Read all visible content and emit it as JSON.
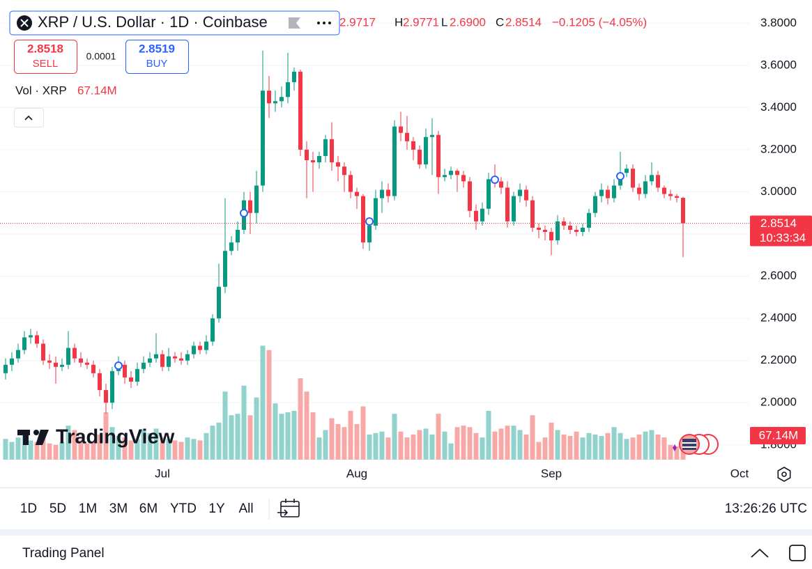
{
  "symbol_title": "XRP / U.S. Dollar · 1D · Coinbase",
  "header": {
    "open": "2.9717",
    "high_label": "H",
    "high": "2.9771",
    "low_label": "L",
    "low": "2.6900",
    "close_label": "C",
    "close": "2.8514",
    "change": "−0.1205 (−4.05%)"
  },
  "sell": {
    "price": "2.8518",
    "label": "SELL"
  },
  "spread": "0.0001",
  "buy": {
    "price": "2.8519",
    "label": "BUY"
  },
  "volume_legend": {
    "label": "Vol · XRP",
    "value": "67.14M"
  },
  "logo": "TradingView",
  "countdown": "10:33:34",
  "timeframes": [
    "1D",
    "5D",
    "1M",
    "3M",
    "6M",
    "YTD",
    "1Y",
    "All"
  ],
  "clock": "13:26:26 UTC",
  "panel_title": "Trading Panel",
  "chart_data": {
    "type": "candlestick",
    "x": [
      "Jun 6",
      "Jun 7",
      "Jun 8",
      "Jun 9",
      "Jun 10",
      "Jun 11",
      "Jun 12",
      "Jun 13",
      "Jun 14",
      "Jun 15",
      "Jun 16",
      "Jun 17",
      "Jun 18",
      "Jun 19",
      "Jun 20",
      "Jun 21",
      "Jun 22",
      "Jun 23",
      "Jun 24",
      "Jun 25",
      "Jun 26",
      "Jun 27",
      "Jun 28",
      "Jun 29",
      "Jun 30",
      "Jul 1",
      "Jul 2",
      "Jul 3",
      "Jul 4",
      "Jul 5",
      "Jul 6",
      "Jul 7",
      "Jul 8",
      "Jul 9",
      "Jul 10",
      "Jul 11",
      "Jul 12",
      "Jul 13",
      "Jul 14",
      "Jul 15",
      "Jul 16",
      "Jul 17",
      "Jul 18",
      "Jul 19",
      "Jul 20",
      "Jul 21",
      "Jul 22",
      "Jul 23",
      "Jul 24",
      "Jul 25",
      "Jul 26",
      "Jul 27",
      "Jul 28",
      "Jul 29",
      "Jul 30",
      "Jul 31",
      "Aug 1",
      "Aug 2",
      "Aug 3",
      "Aug 4",
      "Aug 5",
      "Aug 6",
      "Aug 7",
      "Aug 8",
      "Aug 9",
      "Aug 10",
      "Aug 11",
      "Aug 12",
      "Aug 13",
      "Aug 14",
      "Aug 15",
      "Aug 16",
      "Aug 17",
      "Aug 18",
      "Aug 19",
      "Aug 20",
      "Aug 21",
      "Aug 22",
      "Aug 23",
      "Aug 24",
      "Aug 25",
      "Aug 26",
      "Aug 27",
      "Aug 28",
      "Aug 29",
      "Aug 30",
      "Aug 31",
      "Sep 1",
      "Sep 2",
      "Sep 3",
      "Sep 4",
      "Sep 5",
      "Sep 6",
      "Sep 7",
      "Sep 8",
      "Sep 9",
      "Sep 10",
      "Sep 11",
      "Sep 12",
      "Sep 13",
      "Sep 14",
      "Sep 15",
      "Sep 16",
      "Sep 17",
      "Sep 18",
      "Sep 19",
      "Sep 20",
      "Sep 21",
      "Sep 22"
    ],
    "open": [
      2.14,
      2.18,
      2.21,
      2.25,
      2.31,
      2.32,
      2.28,
      2.2,
      2.19,
      2.17,
      2.18,
      2.26,
      2.21,
      2.19,
      2.18,
      2.14,
      2.06,
      2.0,
      2.15,
      2.18,
      2.12,
      2.1,
      2.16,
      2.19,
      2.21,
      2.23,
      2.17,
      2.22,
      2.21,
      2.2,
      2.23,
      2.27,
      2.25,
      2.29,
      2.4,
      2.55,
      2.72,
      2.76,
      2.82,
      2.96,
      2.9,
      3.03,
      3.48,
      3.42,
      3.43,
      3.45,
      3.52,
      3.57,
      3.2,
      3.15,
      3.14,
      3.17,
      3.25,
      3.14,
      3.12,
      3.08,
      3.0,
      2.98,
      2.76,
      2.84,
      2.97,
      3.01,
      2.98,
      3.31,
      3.28,
      3.24,
      3.2,
      3.13,
      3.26,
      3.27,
      3.07,
      3.08,
      3.1,
      3.08,
      3.05,
      2.91,
      2.86,
      2.92,
      3.06,
      3.05,
      3.02,
      2.86,
      2.98,
      3.01,
      2.96,
      2.83,
      2.82,
      2.81,
      2.77,
      2.86,
      2.84,
      2.82,
      2.81,
      2.83,
      2.9,
      2.98,
      3.01,
      2.97,
      3.03,
      3.09,
      3.11,
      3.02,
      2.99,
      3.05,
      3.08,
      3.02,
      2.99,
      2.98,
      2.9717
    ],
    "high": [
      2.21,
      2.24,
      2.28,
      2.34,
      2.35,
      2.34,
      2.3,
      2.23,
      2.22,
      2.21,
      2.34,
      2.28,
      2.24,
      2.21,
      2.2,
      2.16,
      2.09,
      2.17,
      2.22,
      2.2,
      2.15,
      2.19,
      2.22,
      2.24,
      2.33,
      2.25,
      2.26,
      2.24,
      2.24,
      2.25,
      2.29,
      2.29,
      2.32,
      2.42,
      2.66,
      2.97,
      2.79,
      2.86,
      3.0,
      3.0,
      3.1,
      3.67,
      3.55,
      3.48,
      3.5,
      3.66,
      3.59,
      3.58,
      3.24,
      3.19,
      3.19,
      3.27,
      3.33,
      3.17,
      3.14,
      3.1,
      3.02,
      2.99,
      2.87,
      3.01,
      3.05,
      3.04,
      3.34,
      3.38,
      3.36,
      3.26,
      3.22,
      3.3,
      3.35,
      3.29,
      3.11,
      3.12,
      3.11,
      3.1,
      3.07,
      2.94,
      2.95,
      3.09,
      3.13,
      3.07,
      3.05,
      3.0,
      3.04,
      3.03,
      2.98,
      2.85,
      2.84,
      2.83,
      2.89,
      2.88,
      2.86,
      2.84,
      2.85,
      2.92,
      3.0,
      3.04,
      3.03,
      3.06,
      3.19,
      3.13,
      3.13,
      3.04,
      3.08,
      3.14,
      3.1,
      3.03,
      3.01,
      2.99,
      2.9771
    ],
    "low": [
      2.11,
      2.15,
      2.19,
      2.23,
      2.28,
      2.26,
      2.18,
      2.16,
      2.09,
      2.15,
      2.16,
      2.19,
      2.17,
      2.16,
      2.12,
      2.03,
      1.95,
      1.97,
      2.13,
      2.09,
      2.07,
      2.08,
      2.14,
      2.17,
      2.19,
      2.15,
      2.15,
      2.19,
      2.18,
      2.18,
      2.21,
      2.23,
      2.23,
      2.27,
      2.38,
      2.52,
      2.7,
      2.72,
      2.8,
      2.8,
      2.85,
      3.0,
      3.35,
      3.38,
      3.4,
      3.42,
      3.48,
      3.17,
      2.97,
      3.0,
      3.11,
      3.14,
      3.1,
      3.05,
      3.0,
      2.97,
      2.92,
      2.73,
      2.72,
      2.82,
      2.9,
      2.95,
      2.96,
      3.24,
      3.2,
      3.15,
      3.11,
      3.11,
      3.08,
      2.99,
      3.05,
      3.06,
      3.0,
      3.02,
      2.88,
      2.82,
      2.84,
      2.89,
      3.02,
      2.99,
      2.83,
      2.84,
      2.95,
      2.93,
      2.81,
      2.78,
      2.77,
      2.7,
      2.75,
      2.82,
      2.8,
      2.79,
      2.79,
      2.81,
      2.88,
      2.95,
      2.94,
      2.95,
      3.01,
      3.07,
      3.0,
      2.96,
      2.97,
      3.03,
      3.0,
      2.97,
      2.96,
      2.95,
      2.69
    ],
    "close": [
      2.18,
      2.21,
      2.25,
      2.31,
      2.32,
      2.28,
      2.2,
      2.19,
      2.17,
      2.18,
      2.26,
      2.21,
      2.19,
      2.18,
      2.14,
      2.06,
      2.0,
      2.15,
      2.18,
      2.12,
      2.1,
      2.16,
      2.19,
      2.21,
      2.23,
      2.17,
      2.22,
      2.21,
      2.2,
      2.23,
      2.27,
      2.25,
      2.29,
      2.4,
      2.55,
      2.72,
      2.76,
      2.82,
      2.96,
      2.9,
      3.03,
      3.48,
      3.42,
      3.43,
      3.45,
      3.52,
      3.57,
      3.2,
      3.15,
      3.14,
      3.17,
      3.25,
      3.14,
      3.12,
      3.08,
      3.0,
      2.98,
      2.76,
      2.84,
      2.97,
      3.01,
      2.98,
      3.31,
      3.28,
      3.24,
      3.2,
      3.13,
      3.26,
      3.27,
      3.07,
      3.08,
      3.1,
      3.08,
      3.05,
      2.91,
      2.86,
      2.92,
      3.06,
      3.05,
      3.02,
      2.86,
      2.98,
      3.01,
      2.96,
      2.83,
      2.82,
      2.81,
      2.77,
      2.86,
      2.84,
      2.82,
      2.81,
      2.83,
      2.9,
      2.98,
      3.01,
      2.97,
      3.03,
      3.09,
      3.11,
      3.02,
      2.99,
      3.05,
      3.08,
      3.02,
      2.99,
      2.98,
      2.9719,
      2.8514
    ],
    "volume": [
      140,
      120,
      150,
      170,
      130,
      120,
      160,
      110,
      100,
      120,
      230,
      200,
      130,
      110,
      120,
      170,
      320,
      220,
      160,
      150,
      130,
      140,
      200,
      180,
      210,
      150,
      140,
      130,
      120,
      150,
      140,
      130,
      180,
      230,
      250,
      460,
      300,
      310,
      500,
      300,
      420,
      770,
      740,
      380,
      310,
      320,
      330,
      550,
      460,
      320,
      150,
      200,
      280,
      240,
      220,
      330,
      240,
      360,
      170,
      180,
      190,
      150,
      310,
      190,
      150,
      170,
      200,
      210,
      170,
      310,
      190,
      110,
      220,
      230,
      220,
      180,
      150,
      330,
      190,
      210,
      230,
      230,
      200,
      170,
      300,
      120,
      150,
      250,
      200,
      170,
      160,
      190,
      150,
      180,
      170,
      160,
      180,
      220,
      180,
      140,
      150,
      170,
      190,
      200,
      170,
      150,
      100,
      90,
      67.14
    ],
    "last_volume_label": "67.14M",
    "up_color": "#089981",
    "down_color": "#f23645",
    "volume_up_color": "#92d2cc",
    "volume_down_color": "#f7a9a7",
    "ylim": [
      1.73,
      3.91
    ],
    "yticks": [
      {
        "value": 1.8,
        "label": "1.8000"
      },
      {
        "value": 2.0,
        "label": "2.0000"
      },
      {
        "value": 2.2,
        "label": "2.2000"
      },
      {
        "value": 2.4,
        "label": "2.4000"
      },
      {
        "value": 2.6,
        "label": "2.6000"
      },
      {
        "value": 2.8,
        "label": "2.8000"
      },
      {
        "value": 3.0,
        "label": "3.0000"
      },
      {
        "value": 3.2,
        "label": "3.2000"
      },
      {
        "value": 3.4,
        "label": "3.4000"
      },
      {
        "value": 3.6,
        "label": "3.6000"
      },
      {
        "value": 3.8,
        "label": "3.8000"
      }
    ],
    "y2lim": [
      0,
      800
    ],
    "xticks": [
      {
        "value": "Jul 1",
        "label": "Jul"
      },
      {
        "value": "Aug 1",
        "label": "Aug"
      },
      {
        "value": "Sep 1",
        "label": "Sep"
      },
      {
        "value": "Oct 1",
        "label": "Oct"
      }
    ],
    "grid": true
  }
}
